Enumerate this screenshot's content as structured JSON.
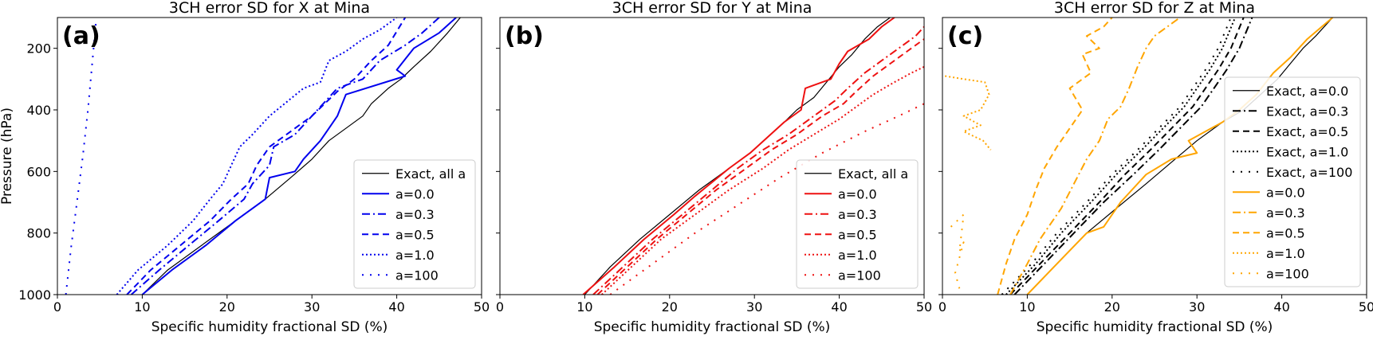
{
  "colors": {
    "exact": "#000000",
    "panel_a": "#0000ee",
    "panel_b": "#ee1111",
    "panel_c": "#ffa500"
  },
  "y_axis_label": "Pressure (hPa)",
  "chart_data": [
    {
      "type": "line",
      "panel_label": "(a)",
      "title": "3CH error  SD  for X at Mina",
      "xlabel": "Specific humidity fractional SD (%)",
      "ylabel": "Pressure (hPa)",
      "xlim": [
        0,
        50
      ],
      "ylim": [
        1000,
        100
      ],
      "y_inverted": true,
      "xticks": [
        0,
        10,
        20,
        30,
        40,
        50
      ],
      "yticks": [
        200,
        400,
        600,
        800,
        1000
      ],
      "legend_position": "lower-right",
      "series_color": "#0000ee",
      "series": [
        {
          "name": "Exact, all a",
          "style": "solid-thin",
          "color": "#000000",
          "x": [
            10,
            13,
            17,
            21,
            24.5,
            27.5,
            30,
            32,
            34,
            36,
            37,
            39,
            40.5,
            42,
            44,
            46,
            47.5
          ],
          "y": [
            1000,
            920,
            840,
            760,
            690,
            620,
            560,
            500,
            460,
            420,
            380,
            330,
            300,
            260,
            210,
            150,
            100
          ]
        },
        {
          "name": "a=0.0",
          "style": "solid",
          "color": "#0000ee",
          "x": [
            10,
            13.5,
            17.5,
            21,
            24.5,
            25,
            28,
            29,
            31,
            32,
            33,
            34,
            41,
            40,
            42,
            45,
            47
          ],
          "y": [
            1000,
            920,
            840,
            760,
            690,
            620,
            600,
            560,
            500,
            460,
            420,
            350,
            290,
            270,
            200,
            150,
            100
          ]
        },
        {
          "name": "a=0.3",
          "style": "dashdot",
          "color": "#0000ee",
          "x": [
            8.7,
            12,
            15.5,
            19,
            22,
            23,
            25,
            25.5,
            28,
            30,
            33,
            36,
            38,
            41,
            43,
            45
          ],
          "y": [
            1000,
            920,
            840,
            760,
            690,
            640,
            580,
            520,
            480,
            420,
            330,
            300,
            240,
            190,
            150,
            100
          ]
        },
        {
          "name": "a=0.5",
          "style": "dashed",
          "color": "#0000ee",
          "x": [
            8.2,
            11,
            14.5,
            18,
            20.5,
            22.5,
            23.5,
            25,
            27,
            30,
            33,
            35,
            37,
            39,
            41
          ],
          "y": [
            1000,
            920,
            840,
            760,
            690,
            640,
            580,
            520,
            480,
            420,
            340,
            300,
            240,
            190,
            100
          ]
        },
        {
          "name": "a=1.0",
          "style": "dotted",
          "color": "#0000ee",
          "x": [
            7,
            9.5,
            13,
            16,
            18,
            19.5,
            20.5,
            21.5,
            23,
            25,
            29,
            31,
            32,
            34,
            36,
            38,
            40
          ],
          "y": [
            1000,
            920,
            840,
            760,
            690,
            640,
            580,
            520,
            480,
            420,
            330,
            310,
            240,
            210,
            170,
            140,
            100
          ]
        },
        {
          "name": "a=100",
          "style": "sparse-dotted",
          "color": "#0000ee",
          "x": [
            1,
            1.6,
            2.3,
            3,
            3.6,
            4.1,
            4.6
          ],
          "y": [
            1000,
            850,
            700,
            550,
            400,
            250,
            100
          ]
        }
      ]
    },
    {
      "type": "line",
      "panel_label": "(b)",
      "title": "3CH error  SD  for Y at Mina",
      "xlabel": "Specific humidity fractional SD (%)",
      "ylabel": "",
      "xlim": [
        0,
        50
      ],
      "ylim": [
        1000,
        100
      ],
      "y_inverted": true,
      "xticks": [
        0,
        10,
        20,
        30,
        40,
        50
      ],
      "yticks": [
        200,
        400,
        600,
        800,
        1000
      ],
      "legend_position": "lower-right",
      "series_color": "#ee1111",
      "series": [
        {
          "name": "Exact, all a",
          "style": "solid-thin",
          "color": "#000000",
          "x": [
            10,
            13,
            16.5,
            20,
            23.5,
            27,
            29.5,
            31.5,
            33.5,
            35,
            37,
            38.5,
            40,
            41.5,
            43,
            44.5,
            46
          ],
          "y": [
            1000,
            910,
            820,
            740,
            660,
            590,
            540,
            490,
            440,
            400,
            360,
            310,
            260,
            220,
            170,
            130,
            100
          ]
        },
        {
          "name": "a=0.0",
          "style": "solid",
          "color": "#ee1111",
          "x": [
            9.8,
            13.5,
            17,
            20.5,
            23,
            27,
            29.5,
            31.5,
            33.5,
            35.5,
            36,
            39,
            40,
            41,
            43.5,
            45,
            46.5
          ],
          "y": [
            1000,
            910,
            820,
            740,
            680,
            590,
            540,
            490,
            440,
            400,
            330,
            300,
            250,
            210,
            170,
            130,
            100
          ]
        },
        {
          "name": "a=0.3",
          "style": "dashdot",
          "color": "#ee1111",
          "x": [
            11,
            14.5,
            18,
            21.5,
            25,
            28,
            31,
            34,
            37,
            39.5,
            41,
            43,
            45,
            47,
            49,
            50
          ],
          "y": [
            1000,
            910,
            820,
            740,
            660,
            590,
            530,
            480,
            420,
            370,
            330,
            280,
            240,
            200,
            160,
            130
          ]
        },
        {
          "name": "a=0.5",
          "style": "dashed",
          "color": "#ee1111",
          "x": [
            11.5,
            15,
            18.5,
            22,
            25.5,
            29,
            32,
            35,
            38,
            40.5,
            42,
            44,
            46,
            48,
            50
          ],
          "y": [
            1000,
            910,
            820,
            740,
            660,
            590,
            530,
            480,
            420,
            380,
            340,
            290,
            250,
            210,
            170
          ]
        },
        {
          "name": "a=1.0",
          "style": "dotted",
          "color": "#ee1111",
          "x": [
            12,
            15.5,
            19,
            23,
            27,
            31,
            34,
            37,
            40,
            42,
            44,
            46.5,
            48.5,
            50
          ],
          "y": [
            1000,
            910,
            820,
            740,
            660,
            590,
            530,
            480,
            430,
            390,
            350,
            310,
            280,
            260
          ]
        },
        {
          "name": "a=100",
          "style": "sparse-dotted",
          "color": "#ee1111",
          "x": [
            13,
            18,
            23,
            28,
            33,
            38,
            43,
            47,
            50
          ],
          "y": [
            1000,
            900,
            800,
            710,
            620,
            540,
            470,
            420,
            380
          ]
        }
      ]
    },
    {
      "type": "line",
      "panel_label": "(c)",
      "title": "3CH error  SD  for Z at Mina",
      "xlabel": "Specific humidity fractional SD (%)",
      "ylabel": "",
      "xlim": [
        0,
        50
      ],
      "ylim": [
        1000,
        100
      ],
      "y_inverted": true,
      "xticks": [
        0,
        10,
        20,
        30,
        40,
        50
      ],
      "yticks": [
        200,
        400,
        600,
        800,
        1000
      ],
      "legend_position": "right",
      "series_color": "#ffa500",
      "series": [
        {
          "name": "Exact, a=0.0",
          "style": "solid-thin",
          "color": "#000000",
          "x": [
            10,
            13.5,
            17,
            20.5,
            24,
            27,
            30,
            33,
            35.5,
            37.5,
            39.5,
            41,
            42.5,
            44,
            46
          ],
          "y": [
            1000,
            900,
            800,
            720,
            640,
            570,
            500,
            440,
            400,
            350,
            300,
            250,
            200,
            160,
            100
          ]
        },
        {
          "name": "Exact, a=0.3",
          "style": "dashdot",
          "color": "#000000",
          "x": [
            8.5,
            12,
            15.5,
            19,
            22.5,
            25.5,
            28,
            30.5,
            32,
            33.5,
            35,
            36.5
          ],
          "y": [
            1000,
            900,
            800,
            700,
            610,
            530,
            460,
            390,
            330,
            270,
            200,
            100
          ]
        },
        {
          "name": "Exact, a=0.5",
          "style": "dashed",
          "color": "#000000",
          "x": [
            8,
            11.5,
            15,
            18.5,
            21.5,
            24.5,
            27,
            29.5,
            31,
            32.5,
            34,
            35.5
          ],
          "y": [
            1000,
            900,
            800,
            700,
            610,
            530,
            460,
            390,
            330,
            270,
            200,
            100
          ]
        },
        {
          "name": "Exact, a=1.0",
          "style": "dotted",
          "color": "#000000",
          "x": [
            7.5,
            11,
            14,
            17.5,
            20.5,
            23.5,
            26,
            28.5,
            30,
            31.5,
            33,
            34.5
          ],
          "y": [
            1000,
            900,
            800,
            700,
            610,
            530,
            460,
            390,
            330,
            270,
            200,
            100
          ]
        },
        {
          "name": "Exact, a=100",
          "style": "sparse-dotted",
          "color": "#000000",
          "x": [
            7,
            10.5,
            13.5,
            17,
            20,
            23,
            25.5,
            28,
            29.5,
            31,
            32.5,
            34
          ],
          "y": [
            1000,
            900,
            800,
            700,
            610,
            530,
            460,
            390,
            330,
            270,
            200,
            100
          ]
        },
        {
          "name": "a=0.0",
          "style": "solid",
          "color": "#ffa500",
          "x": [
            10,
            13.5,
            17,
            19,
            21,
            24,
            27,
            30,
            29,
            33,
            35,
            37,
            39,
            41,
            43,
            46
          ],
          "y": [
            1000,
            900,
            800,
            780,
            700,
            610,
            560,
            540,
            500,
            440,
            400,
            350,
            280,
            230,
            170,
            100
          ]
        },
        {
          "name": "a=0.3",
          "style": "dashdot",
          "color": "#ffa500",
          "x": [
            8,
            10,
            11.5,
            14,
            15.5,
            17,
            18.5,
            19.5,
            21,
            22,
            23,
            24,
            25,
            26.5,
            28
          ],
          "y": [
            1000,
            900,
            820,
            720,
            640,
            560,
            500,
            430,
            390,
            330,
            260,
            200,
            160,
            130,
            100
          ]
        },
        {
          "name": "a=0.5",
          "style": "dashed",
          "color": "#ffa500",
          "x": [
            6.5,
            7.5,
            8.5,
            10,
            11,
            12,
            13.5,
            14.5,
            16.5,
            15,
            17.5,
            16.5,
            18.5,
            17,
            19,
            20
          ],
          "y": [
            1000,
            900,
            820,
            740,
            660,
            590,
            520,
            480,
            400,
            330,
            280,
            220,
            200,
            160,
            130,
            100
          ]
        },
        {
          "name": "a=1.0",
          "style": "dotted",
          "color": "#ffa500",
          "x": [
            0.3,
            2.5,
            5,
            5.5,
            4.5,
            2.5,
            4.5,
            2.5,
            4.8,
            5.7
          ],
          "y": [
            290,
            300,
            310,
            350,
            400,
            420,
            450,
            470,
            500,
            530
          ]
        },
        {
          "name": "a=100",
          "style": "sparse-dotted",
          "color": "#ffa500",
          "x": [
            1,
            2.5,
            2,
            2.5,
            1.5,
            2
          ],
          "y": [
            780,
            740,
            860,
            830,
            930,
            980
          ]
        }
      ]
    }
  ]
}
